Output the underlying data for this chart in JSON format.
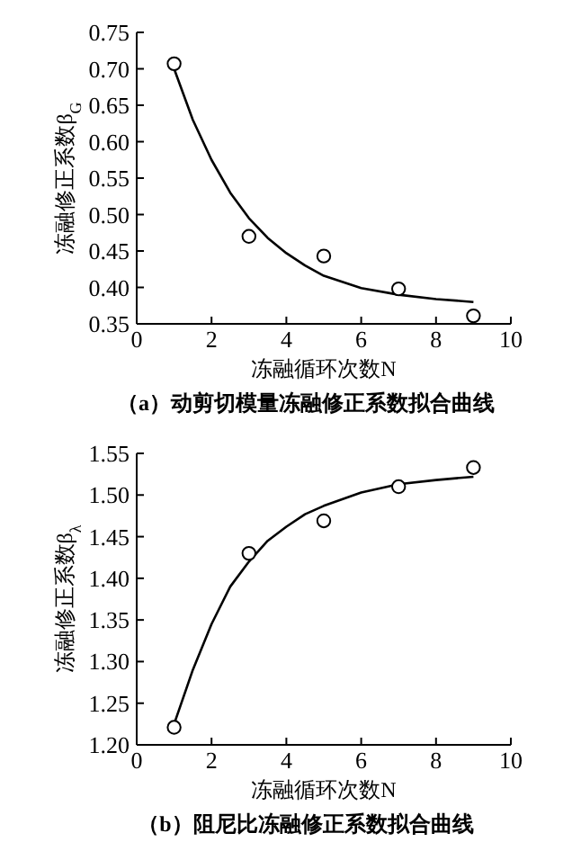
{
  "chart_data": [
    {
      "type": "scatter",
      "title": "（a）动剪切模量冻融修正系数拟合曲线",
      "xlabel": "冻融循环次数N",
      "ylabel": "冻融修正系数β$_{G}$",
      "xlim": [
        0,
        10
      ],
      "ylim": [
        0.35,
        0.75
      ],
      "xticks": [
        0,
        2,
        4,
        6,
        8,
        10
      ],
      "yticks": [
        0.35,
        {
          "value": 0.4,
          "label": "0.40"
        },
        0.45,
        {
          "value": 0.5,
          "label": "0.50"
        },
        0.55,
        {
          "value": 0.6,
          "label": "0.60"
        },
        0.65,
        {
          "value": 0.7,
          "label": "0.70"
        },
        0.75
      ],
      "series": [
        {
          "marker": "circle",
          "color": "#000000",
          "x": [
            1,
            3,
            5,
            7,
            9
          ],
          "values": [
            0.707,
            0.47,
            0.443,
            0.398,
            0.361
          ]
        },
        {
          "type": "line",
          "color": "#000000",
          "x": [
            1,
            1.5,
            2,
            2.5,
            3,
            3.5,
            4,
            4.5,
            5,
            6,
            7,
            8,
            9
          ],
          "values": [
            0.7,
            0.63,
            0.575,
            0.53,
            0.495,
            0.468,
            0.447,
            0.43,
            0.416,
            0.399,
            0.39,
            0.384,
            0.38
          ]
        }
      ]
    },
    {
      "type": "scatter",
      "title": "（b）阻尼比冻融修正系数拟合曲线",
      "xlabel": "冻融循环次数N",
      "ylabel": "冻融修正系数β$_{λ}$",
      "xlim": [
        0,
        10
      ],
      "ylim": [
        1.2,
        1.55
      ],
      "xticks": [
        0,
        2,
        4,
        6,
        8,
        10
      ],
      "yticks": [
        {
          "value": 1.2,
          "label": "1.20"
        },
        1.25,
        {
          "value": 1.3,
          "label": "1.30"
        },
        1.35,
        {
          "value": 1.4,
          "label": "1.40"
        },
        1.45,
        {
          "value": 1.5,
          "label": "1.50"
        },
        1.55
      ],
      "series": [
        {
          "marker": "circle",
          "color": "#000000",
          "x": [
            1,
            3,
            5,
            7,
            9
          ],
          "values": [
            1.221,
            1.43,
            1.469,
            1.51,
            1.533
          ]
        },
        {
          "type": "line",
          "color": "#000000",
          "x": [
            1,
            1.5,
            2,
            2.5,
            3,
            3.5,
            4,
            4.5,
            5,
            6,
            7,
            8,
            9
          ],
          "values": [
            1.225,
            1.29,
            1.345,
            1.39,
            1.42,
            1.445,
            1.462,
            1.477,
            1.487,
            1.503,
            1.513,
            1.518,
            1.522
          ]
        }
      ]
    }
  ]
}
